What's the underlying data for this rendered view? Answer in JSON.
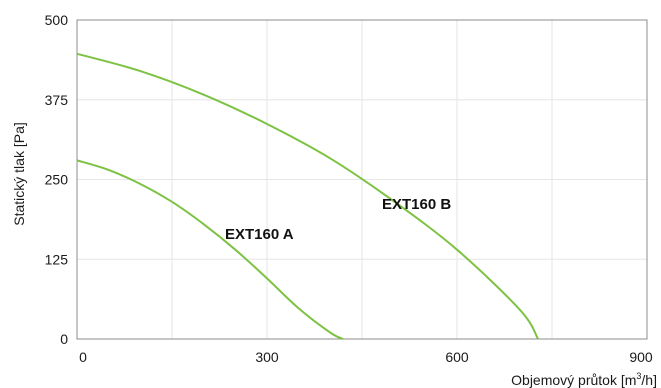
{
  "chart_data": {
    "type": "line",
    "xlabel": "Objemový průtok [m",
    "xlabel_sup": "3",
    "xlabel_suffix": "/h]",
    "ylabel": "Statický tlak [Pa]",
    "xlim": [
      0,
      900
    ],
    "ylim": [
      0,
      500
    ],
    "xticks": [
      0,
      300,
      600,
      900
    ],
    "yticks": [
      0,
      125,
      250,
      375,
      500
    ],
    "grid": true,
    "line_color": "#7dc243",
    "series": [
      {
        "name": "EXT160 A",
        "x": [
          0,
          50,
          100,
          150,
          200,
          250,
          300,
          350,
          400,
          420
        ],
        "y": [
          280,
          265,
          243,
          215,
          180,
          140,
          95,
          48,
          10,
          0
        ]
      },
      {
        "name": "EXT160 B",
        "x": [
          0,
          100,
          200,
          300,
          400,
          500,
          600,
          700,
          728
        ],
        "y": [
          447,
          420,
          383,
          337,
          283,
          216,
          140,
          45,
          0
        ]
      }
    ]
  }
}
